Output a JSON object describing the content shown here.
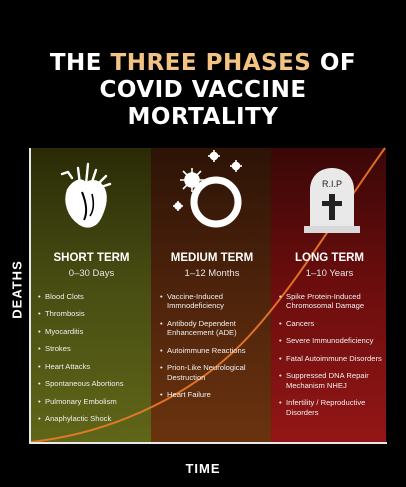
{
  "title": {
    "line1_pre": "THE",
    "line1_accent": "THREE PHASES",
    "line1_post": "OF",
    "line2": "COVID VACCINE",
    "line3": "MORTALITY"
  },
  "axes": {
    "y_label": "DEATHS",
    "x_label": "TIME"
  },
  "colors": {
    "accent": "#f2c383",
    "short": "#5f6618",
    "medium": "#6a330f",
    "long": "#931616",
    "curve": "#f07a2b"
  },
  "phases": [
    {
      "icon": "anatomical-heart-icon",
      "heading": "SHORT TERM",
      "range": "0–30 Days",
      "items": [
        "Blood Clots",
        "Thrombosis",
        "Myocarditis",
        "Strokes",
        "Heart Attacks",
        "Spontaneous Abortions",
        "Pulmonary Embolism",
        "Anaphylactic Shock"
      ]
    },
    {
      "icon": "virus-ring-icon",
      "heading": "MEDIUM TERM",
      "range": "1–12 Months",
      "items": [
        "Vaccine-Induced Immnodeficiency",
        "Antibody Dependent Enhancement (ADE)",
        "Autoimmune Reactions",
        "Prion-Like Neurological Destruction",
        "Heart Failure"
      ]
    },
    {
      "icon": "tombstone-icon",
      "heading": "LONG TERM",
      "range": "1–10 Years",
      "tombstone_text": "R.I.P",
      "items": [
        "Spike Protein-Induced Chromosomal Damage",
        "Cancers",
        "Severe Immunodeficiency",
        "Fatal Autoimmune Disorders",
        "Suppressed DNA Repair Mechanism NHEJ",
        "Infertility / Reproductive Disorders"
      ]
    }
  ]
}
